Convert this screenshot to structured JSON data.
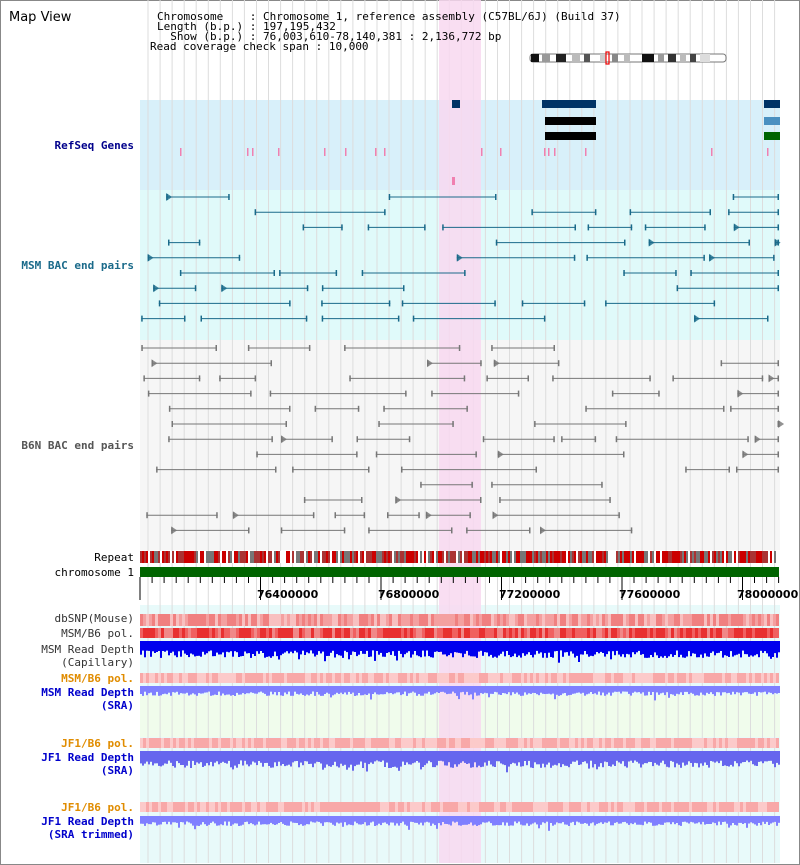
{
  "title": "Map View",
  "header": {
    "chromosome_label": "Chromosome    ",
    "chromosome_value": ": Chromosome 1, reference assembly (C57BL/6J) (Build 37)",
    "length_label": "Length (b.p.) ",
    "length_value": ": 197,195,432",
    "show_label": "  Show (b.p.) ",
    "show_value": ": 76,003,610-78,140,381 : 2,136,772 bp",
    "coverage_label": "Read coverage check span ",
    "coverage_value": ": 10,000"
  },
  "tracks": {
    "refseq": "RefSeq Genes",
    "msm_bac": "MSM BAC end pairs",
    "b6n_bac": "B6N BAC end pairs",
    "repeat": "Repeat",
    "chromosome": "chromosome 1",
    "dbsnp": "dbSNP(Mouse)",
    "msm_pol": "MSM/B6 pol.",
    "msm_depth_cap_1": "MSM Read Depth",
    "msm_depth_cap_2": "(Capillary)",
    "msm_pol_sra": "MSM/B6 pol.",
    "msm_depth_sra_1": "MSM Read Depth",
    "msm_depth_sra_2": "(SRA)",
    "jf1_pol_1": "JF1/B6 pol.",
    "jf1_depth_1": "JF1 Read Depth",
    "jf1_depth_1b": "(SRA)",
    "jf1_pol_2": "JF1/B6 pol.",
    "jf1_depth_2": "JF1 Read Depth",
    "jf1_depth_2b": "(SRA trimmed)"
  },
  "axis": {
    "ticks": [
      "76400000",
      "76800000",
      "77200000",
      "77600000",
      "78000000"
    ]
  },
  "colors": {
    "refseq_bg": "#d8f0fa",
    "msm_bg": "#e0fafa",
    "b6n_bg": "#f8f8f8",
    "highlight": "#f8d8f0",
    "msm_feature": "#1a6a8a",
    "b6n_feature": "#777777",
    "refseq_label": "#00008b",
    "msm_label": "#1a6a8a",
    "b6n_label": "#555555",
    "pol_label": "#e08c00",
    "depth_label": "#0000cc",
    "chromosome_bar": "#006400"
  }
}
